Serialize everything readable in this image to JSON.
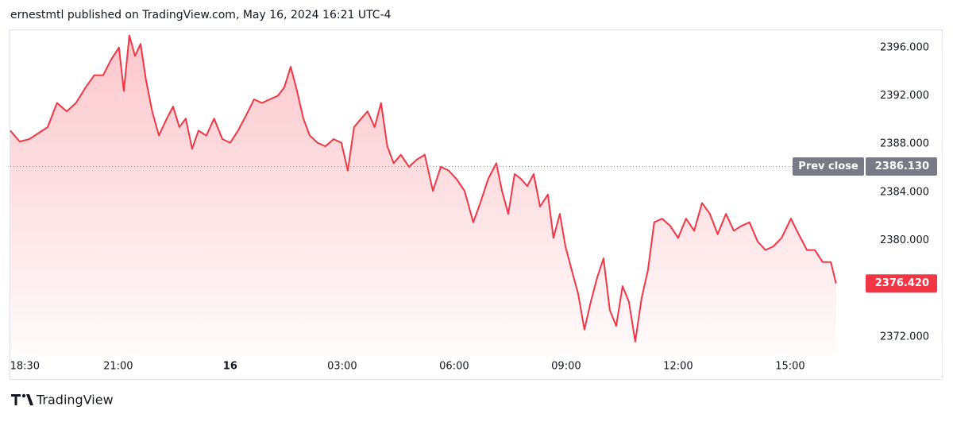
{
  "header": "ernestmtl published on TradingView.com, May 16, 2024 16:21 UTC-4",
  "footer": "TradingView",
  "chart_data": {
    "type": "area",
    "color": "#f23645",
    "x": [
      18.11,
      18.36,
      18.62,
      18.87,
      19.11,
      19.36,
      19.62,
      19.87,
      20.13,
      20.36,
      20.6,
      20.81,
      21.02,
      21.15,
      21.3,
      21.45,
      21.6,
      21.74,
      21.91,
      22.09,
      22.3,
      22.47,
      22.64,
      22.81,
      22.98,
      23.15,
      23.36,
      23.57,
      23.79,
      24.0,
      24.21,
      24.43,
      24.64,
      24.85,
      25.06,
      25.28,
      25.45,
      25.62,
      25.79,
      25.96,
      26.13,
      26.34,
      26.55,
      26.77,
      26.98,
      27.15,
      27.32,
      27.51,
      27.68,
      27.87,
      28.04,
      28.21,
      28.38,
      28.57,
      28.79,
      29.0,
      29.21,
      29.43,
      29.64,
      29.85,
      30.06,
      30.28,
      30.51,
      30.7,
      30.91,
      31.13,
      31.28,
      31.45,
      31.62,
      31.79,
      31.96,
      32.13,
      32.3,
      32.51,
      32.66,
      32.83,
      32.98,
      33.15,
      33.32,
      33.49,
      33.66,
      33.83,
      34.0,
      34.17,
      34.34,
      34.51,
      34.68,
      34.85,
      35.02,
      35.19,
      35.36,
      35.57,
      35.79,
      36.0,
      36.21,
      36.43,
      36.64,
      36.85,
      37.06,
      37.28,
      37.49,
      37.7,
      37.91,
      38.13,
      38.34,
      38.55,
      38.77,
      39.02,
      39.23,
      39.45,
      39.66,
      39.87,
      40.09,
      40.23
    ],
    "values": [
      2389.1,
      2388.2,
      2388.4,
      2388.9,
      2389.4,
      2391.4,
      2390.7,
      2391.4,
      2392.7,
      2393.7,
      2393.7,
      2395.0,
      2396.0,
      2392.4,
      2397.0,
      2395.3,
      2396.3,
      2393.4,
      2390.7,
      2388.7,
      2390.1,
      2391.1,
      2389.4,
      2390.1,
      2387.6,
      2389.1,
      2388.7,
      2390.1,
      2388.4,
      2388.1,
      2389.1,
      2390.4,
      2391.7,
      2391.4,
      2391.7,
      2392.0,
      2392.7,
      2394.4,
      2392.4,
      2390.1,
      2388.7,
      2388.1,
      2387.8,
      2388.4,
      2388.1,
      2385.8,
      2389.4,
      2390.1,
      2390.7,
      2389.4,
      2391.4,
      2387.8,
      2386.4,
      2387.1,
      2386.1,
      2386.7,
      2387.1,
      2384.1,
      2386.1,
      2385.8,
      2385.1,
      2384.1,
      2381.5,
      2383.1,
      2385.1,
      2386.4,
      2384.1,
      2382.2,
      2385.5,
      2385.1,
      2384.5,
      2385.5,
      2382.8,
      2383.8,
      2380.2,
      2382.2,
      2379.5,
      2377.5,
      2375.6,
      2372.6,
      2374.9,
      2376.9,
      2378.5,
      2374.2,
      2372.9,
      2376.2,
      2374.9,
      2371.6,
      2375.2,
      2377.5,
      2381.5,
      2381.8,
      2381.2,
      2380.2,
      2381.8,
      2380.8,
      2383.1,
      2382.2,
      2380.5,
      2382.2,
      2380.8,
      2381.2,
      2381.5,
      2379.9,
      2379.2,
      2379.5,
      2380.2,
      2381.8,
      2380.5,
      2379.2,
      2379.2,
      2378.2,
      2378.2,
      2376.42
    ],
    "xlim": [
      18.11,
      40.98
    ],
    "xticks": [
      {
        "value": 18.5,
        "label": "18:30"
      },
      {
        "value": 21,
        "label": "21:00"
      },
      {
        "value": 24,
        "label": "16"
      },
      {
        "value": 27,
        "label": "03:00"
      },
      {
        "value": 30,
        "label": "06:00"
      },
      {
        "value": 33,
        "label": "09:00"
      },
      {
        "value": 36,
        "label": "12:00"
      },
      {
        "value": 39,
        "label": "15:00"
      }
    ],
    "ylim": [
      2370.6,
      2397.5
    ],
    "yticks": [
      {
        "value": 2372,
        "label": "2372.000"
      },
      {
        "value": 2380,
        "label": "2380.000"
      },
      {
        "value": 2384,
        "label": "2384.000"
      },
      {
        "value": 2388,
        "label": "2388.000"
      },
      {
        "value": 2392,
        "label": "2392.000"
      },
      {
        "value": 2396,
        "label": "2396.000"
      }
    ],
    "prev_close_name": "Prev close",
    "prev_close": {
      "value": 2386.13,
      "label": "2386.130"
    },
    "last_price": {
      "value": 2376.42,
      "label": "2376.420"
    }
  }
}
